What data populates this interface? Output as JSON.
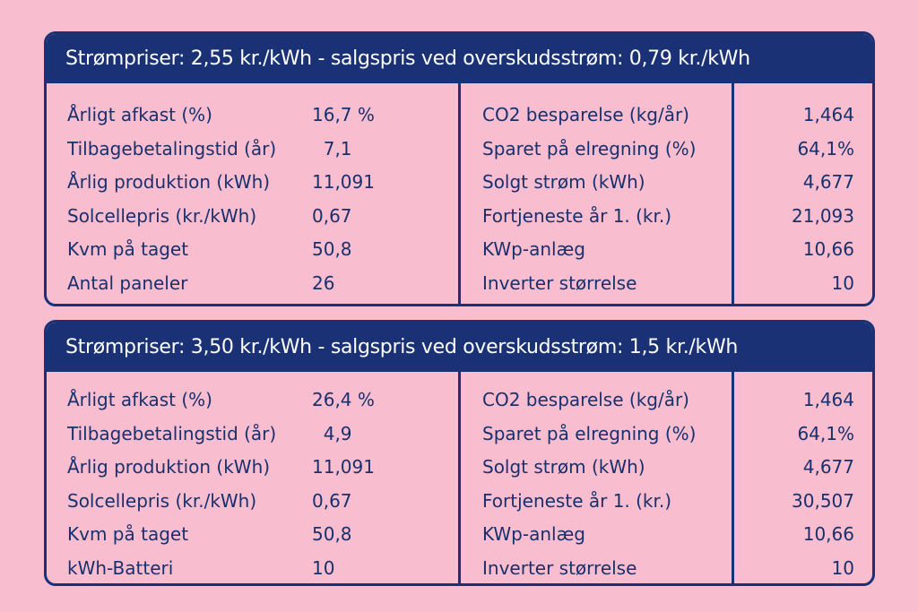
{
  "panels": [
    {
      "title": "Strømpriser: 2,55 kr./kWh - salgspris ved overskudsstrøm: 0,79 kr./kWh",
      "left_rows": [
        {
          "label": "Årligt afkast (%)",
          "value": "16,7 %"
        },
        {
          "label": "Tilbagebetalingstid (år)",
          "value": "  7,1"
        },
        {
          "label": "Årlig produktion (kWh)",
          "value": "11,091"
        },
        {
          "label": "Solcellepris (kr./kWh)",
          "value": "0,67"
        },
        {
          "label": "Kvm på taget",
          "value": "50,8"
        },
        {
          "label": "Antal paneler",
          "value": "26"
        }
      ],
      "right_rows": [
        {
          "label": "CO2 besparelse (kg/år)",
          "value": "1,464"
        },
        {
          "label": "Sparet på elregning (%)",
          "value": "64,1%"
        },
        {
          "label": "Solgt strøm (kWh)",
          "value": "4,677"
        },
        {
          "label": "Fortjeneste år 1. (kr.)",
          "value": "21,093"
        },
        {
          "label": "KWp-anlæg",
          "value": "10,66"
        },
        {
          "label": "Inverter størrelse",
          "value": "10"
        }
      ]
    },
    {
      "title": "Strømpriser: 3,50 kr./kWh - salgspris ved overskudsstrøm: 1,5 kr./kWh",
      "left_rows": [
        {
          "label": "Årligt afkast (%)",
          "value": "26,4 %"
        },
        {
          "label": "Tilbagebetalingstid (år)",
          "value": "  4,9"
        },
        {
          "label": "Årlig produktion (kWh)",
          "value": "11,091"
        },
        {
          "label": "Solcellepris (kr./kWh)",
          "value": "0,67"
        },
        {
          "label": "Kvm på taget",
          "value": "50,8"
        },
        {
          "label": "kWh-Batteri",
          "value": "10"
        }
      ],
      "right_rows": [
        {
          "label": "CO2 besparelse (kg/år)",
          "value": "1,464"
        },
        {
          "label": "Sparet på elregning (%)",
          "value": "64,1%"
        },
        {
          "label": "Solgt strøm (kWh)",
          "value": "4,677"
        },
        {
          "label": "Fortjeneste år 1. (kr.)",
          "value": "30,507"
        },
        {
          "label": "KWp-anlæg",
          "value": "10,66"
        },
        {
          "label": "Inverter størrelse",
          "value": "10"
        }
      ]
    }
  ],
  "colors": {
    "background": "#f9bdd0",
    "navy": "#1a3275",
    "text": "#18306c",
    "header_text": "#ffffff"
  }
}
